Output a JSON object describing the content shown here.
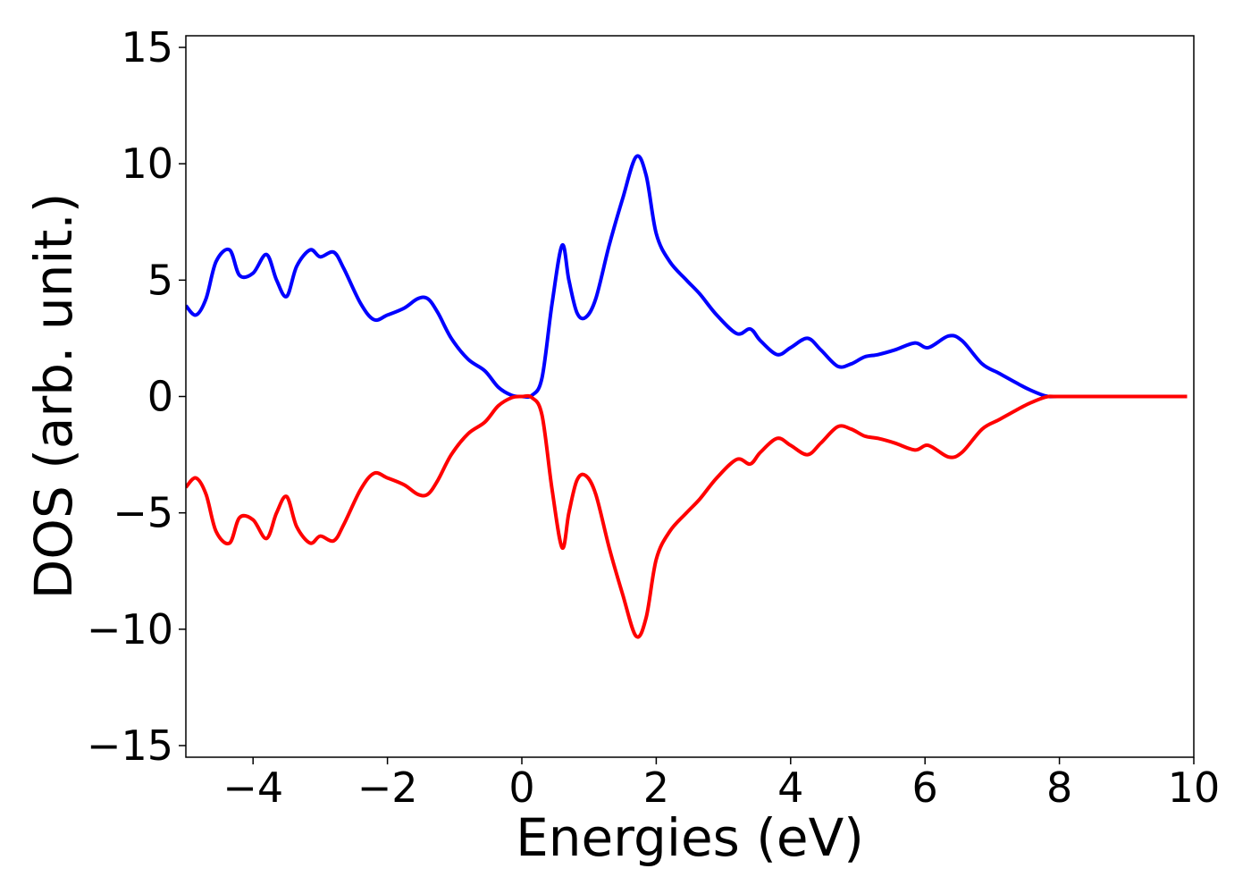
{
  "chart_data": {
    "type": "line",
    "title": "",
    "xlabel": "Energies (eV)",
    "ylabel": "DOS (arb. unit.)",
    "xlim": [
      -5,
      10
    ],
    "ylim": [
      -15.5,
      15.5
    ],
    "xticks": [
      -4,
      -2,
      0,
      2,
      4,
      6,
      8,
      10
    ],
    "xtick_labels": [
      "−4",
      "−2",
      "0",
      "2",
      "4",
      "6",
      "8",
      "10"
    ],
    "yticks": [
      -15,
      -10,
      -5,
      0,
      5,
      10,
      15
    ],
    "ytick_labels": [
      "−15",
      "−10",
      "−5",
      "0",
      "5",
      "10",
      "15"
    ],
    "grid": false,
    "legend": "none",
    "series": [
      {
        "color": "#0000ff",
        "x": [
          -5.0,
          -4.85,
          -4.7,
          -4.55,
          -4.35,
          -4.2,
          -4.0,
          -3.8,
          -3.65,
          -3.5,
          -3.35,
          -3.15,
          -3.0,
          -2.8,
          -2.65,
          -2.4,
          -2.2,
          -2.0,
          -1.75,
          -1.55,
          -1.4,
          -1.25,
          -1.05,
          -0.8,
          -0.55,
          -0.35,
          -0.15,
          0.0,
          0.15,
          0.3,
          0.45,
          0.6,
          0.7,
          0.82,
          0.95,
          1.1,
          1.3,
          1.5,
          1.7,
          1.85,
          2.0,
          2.2,
          2.45,
          2.65,
          2.9,
          3.2,
          3.4,
          3.55,
          3.8,
          4.0,
          4.25,
          4.45,
          4.7,
          4.9,
          5.1,
          5.3,
          5.55,
          5.85,
          6.05,
          6.35,
          6.55,
          6.85,
          7.1,
          7.35,
          7.55,
          7.8,
          8.0,
          9.0,
          9.9
        ],
        "y": [
          3.9,
          3.5,
          4.2,
          5.8,
          6.3,
          5.2,
          5.3,
          6.1,
          5.0,
          4.3,
          5.6,
          6.3,
          6.0,
          6.2,
          5.5,
          4.0,
          3.3,
          3.5,
          3.8,
          4.2,
          4.2,
          3.6,
          2.5,
          1.6,
          1.1,
          0.4,
          0.05,
          0.0,
          0.05,
          0.8,
          4.0,
          6.5,
          5.0,
          3.6,
          3.4,
          4.2,
          6.5,
          8.5,
          10.3,
          9.5,
          7.0,
          5.8,
          5.0,
          4.4,
          3.5,
          2.7,
          2.9,
          2.4,
          1.8,
          2.1,
          2.5,
          2.0,
          1.3,
          1.4,
          1.7,
          1.8,
          2.0,
          2.3,
          2.1,
          2.6,
          2.4,
          1.4,
          1.0,
          0.6,
          0.3,
          0.02,
          0.0,
          0.0,
          0.0
        ]
      },
      {
        "color": "#ff0000",
        "x": [
          -5.0,
          -4.85,
          -4.7,
          -4.55,
          -4.35,
          -4.2,
          -4.0,
          -3.8,
          -3.65,
          -3.5,
          -3.35,
          -3.15,
          -3.0,
          -2.8,
          -2.65,
          -2.4,
          -2.2,
          -2.0,
          -1.75,
          -1.55,
          -1.4,
          -1.25,
          -1.05,
          -0.8,
          -0.55,
          -0.35,
          -0.15,
          0.0,
          0.15,
          0.3,
          0.45,
          0.6,
          0.7,
          0.82,
          0.95,
          1.1,
          1.3,
          1.5,
          1.7,
          1.85,
          2.0,
          2.2,
          2.45,
          2.65,
          2.9,
          3.2,
          3.4,
          3.55,
          3.8,
          4.0,
          4.25,
          4.45,
          4.7,
          4.9,
          5.1,
          5.3,
          5.55,
          5.85,
          6.05,
          6.35,
          6.55,
          6.85,
          7.1,
          7.35,
          7.55,
          7.8,
          8.0,
          9.0,
          9.9
        ],
        "y": [
          -3.9,
          -3.5,
          -4.2,
          -5.8,
          -6.3,
          -5.2,
          -5.3,
          -6.1,
          -5.0,
          -4.3,
          -5.6,
          -6.3,
          -6.0,
          -6.2,
          -5.5,
          -4.0,
          -3.3,
          -3.5,
          -3.8,
          -4.2,
          -4.2,
          -3.6,
          -2.5,
          -1.6,
          -1.1,
          -0.4,
          -0.05,
          0.0,
          -0.05,
          -0.8,
          -4.0,
          -6.5,
          -5.0,
          -3.6,
          -3.4,
          -4.2,
          -6.5,
          -8.5,
          -10.3,
          -9.5,
          -7.0,
          -5.8,
          -5.0,
          -4.4,
          -3.5,
          -2.7,
          -2.9,
          -2.4,
          -1.8,
          -2.1,
          -2.5,
          -2.0,
          -1.3,
          -1.4,
          -1.7,
          -1.8,
          -2.0,
          -2.3,
          -2.1,
          -2.6,
          -2.4,
          -1.4,
          -1.0,
          -0.6,
          -0.3,
          -0.02,
          0.0,
          0.0,
          0.0
        ]
      }
    ]
  }
}
